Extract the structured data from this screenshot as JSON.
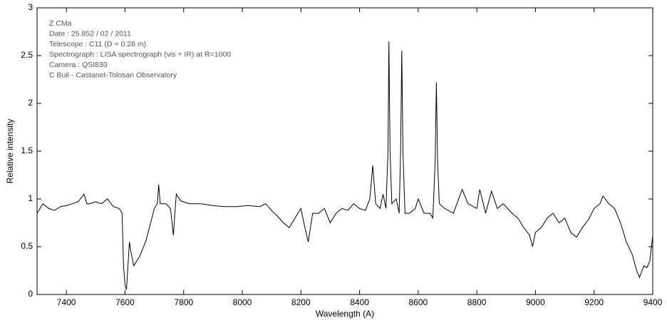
{
  "chart_data": {
    "type": "line",
    "xlabel": "Wavelength (A)",
    "ylabel": "Relative intensity",
    "annotations": [
      "Z CMa",
      "Date : 25.852 / 02 / 2011",
      "Telescope : C11 (D = 0.28 m)",
      "Spectrograph : LISA spectrograph (vis + IR) at R=1000",
      "Camera : QSI830",
      "C Buil - Castanet-Tolosan Observatory"
    ],
    "xlim": [
      7300,
      9400
    ],
    "ylim": [
      0,
      3
    ],
    "xticks": [
      7400,
      7600,
      7800,
      8000,
      8200,
      8400,
      8600,
      8800,
      9000,
      9200,
      9400
    ],
    "yticks": [
      0,
      0.5,
      1,
      1.5,
      2,
      2.5,
      3
    ],
    "color": "#000000",
    "x": [
      7300,
      7320,
      7340,
      7360,
      7380,
      7400,
      7420,
      7440,
      7460,
      7470,
      7480,
      7500,
      7520,
      7540,
      7560,
      7580,
      7590,
      7595,
      7600,
      7605,
      7610,
      7615,
      7620,
      7630,
      7650,
      7670,
      7690,
      7700,
      7710,
      7715,
      7720,
      7740,
      7755,
      7765,
      7770,
      7775,
      7790,
      7820,
      7860,
      7900,
      7940,
      7980,
      8020,
      8060,
      8080,
      8100,
      8120,
      8140,
      8160,
      8180,
      8200,
      8210,
      8225,
      8240,
      8260,
      8280,
      8300,
      8320,
      8340,
      8360,
      8380,
      8400,
      8420,
      8435,
      8445,
      8455,
      8470,
      8480,
      8490,
      8497,
      8500,
      8504,
      8510,
      8525,
      8535,
      8540,
      8544,
      8548,
      8555,
      8570,
      8590,
      8600,
      8620,
      8640,
      8650,
      8658,
      8662,
      8666,
      8672,
      8690,
      8720,
      8750,
      8770,
      8800,
      8810,
      8830,
      8850,
      8870,
      8890,
      8920,
      8940,
      8960,
      8980,
      8990,
      9000,
      9020,
      9040,
      9060,
      9080,
      9100,
      9120,
      9140,
      9160,
      9180,
      9200,
      9220,
      9230,
      9250,
      9270,
      9290,
      9310,
      9330,
      9345,
      9355,
      9370,
      9380,
      9390,
      9400
    ],
    "values": [
      0.85,
      0.95,
      0.9,
      0.88,
      0.92,
      0.93,
      0.95,
      0.97,
      1.05,
      0.95,
      0.95,
      0.97,
      0.95,
      1.0,
      0.92,
      0.9,
      0.85,
      0.3,
      0.1,
      0.05,
      0.3,
      0.55,
      0.45,
      0.3,
      0.4,
      0.55,
      0.78,
      0.9,
      0.95,
      1.15,
      0.95,
      0.95,
      0.9,
      0.62,
      0.85,
      1.05,
      0.98,
      0.95,
      0.95,
      0.93,
      0.92,
      0.92,
      0.93,
      0.92,
      0.95,
      0.88,
      0.82,
      0.75,
      0.7,
      0.8,
      0.9,
      0.75,
      0.55,
      0.85,
      0.85,
      0.9,
      0.75,
      0.85,
      0.9,
      0.88,
      0.95,
      0.9,
      0.88,
      1.0,
      1.35,
      0.95,
      0.9,
      1.05,
      0.9,
      1.5,
      2.65,
      1.5,
      0.95,
      1.0,
      0.85,
      1.5,
      2.55,
      1.5,
      0.85,
      0.85,
      0.9,
      1.0,
      0.85,
      0.85,
      0.8,
      1.4,
      2.22,
      1.4,
      0.95,
      0.9,
      0.85,
      1.1,
      0.95,
      0.9,
      1.1,
      0.85,
      1.08,
      0.9,
      0.95,
      0.85,
      0.8,
      0.7,
      0.62,
      0.5,
      0.65,
      0.7,
      0.8,
      0.85,
      0.75,
      0.8,
      0.65,
      0.6,
      0.7,
      0.78,
      0.9,
      0.95,
      1.03,
      0.95,
      0.9,
      0.75,
      0.55,
      0.42,
      0.25,
      0.18,
      0.3,
      0.28,
      0.35,
      0.62
    ]
  }
}
